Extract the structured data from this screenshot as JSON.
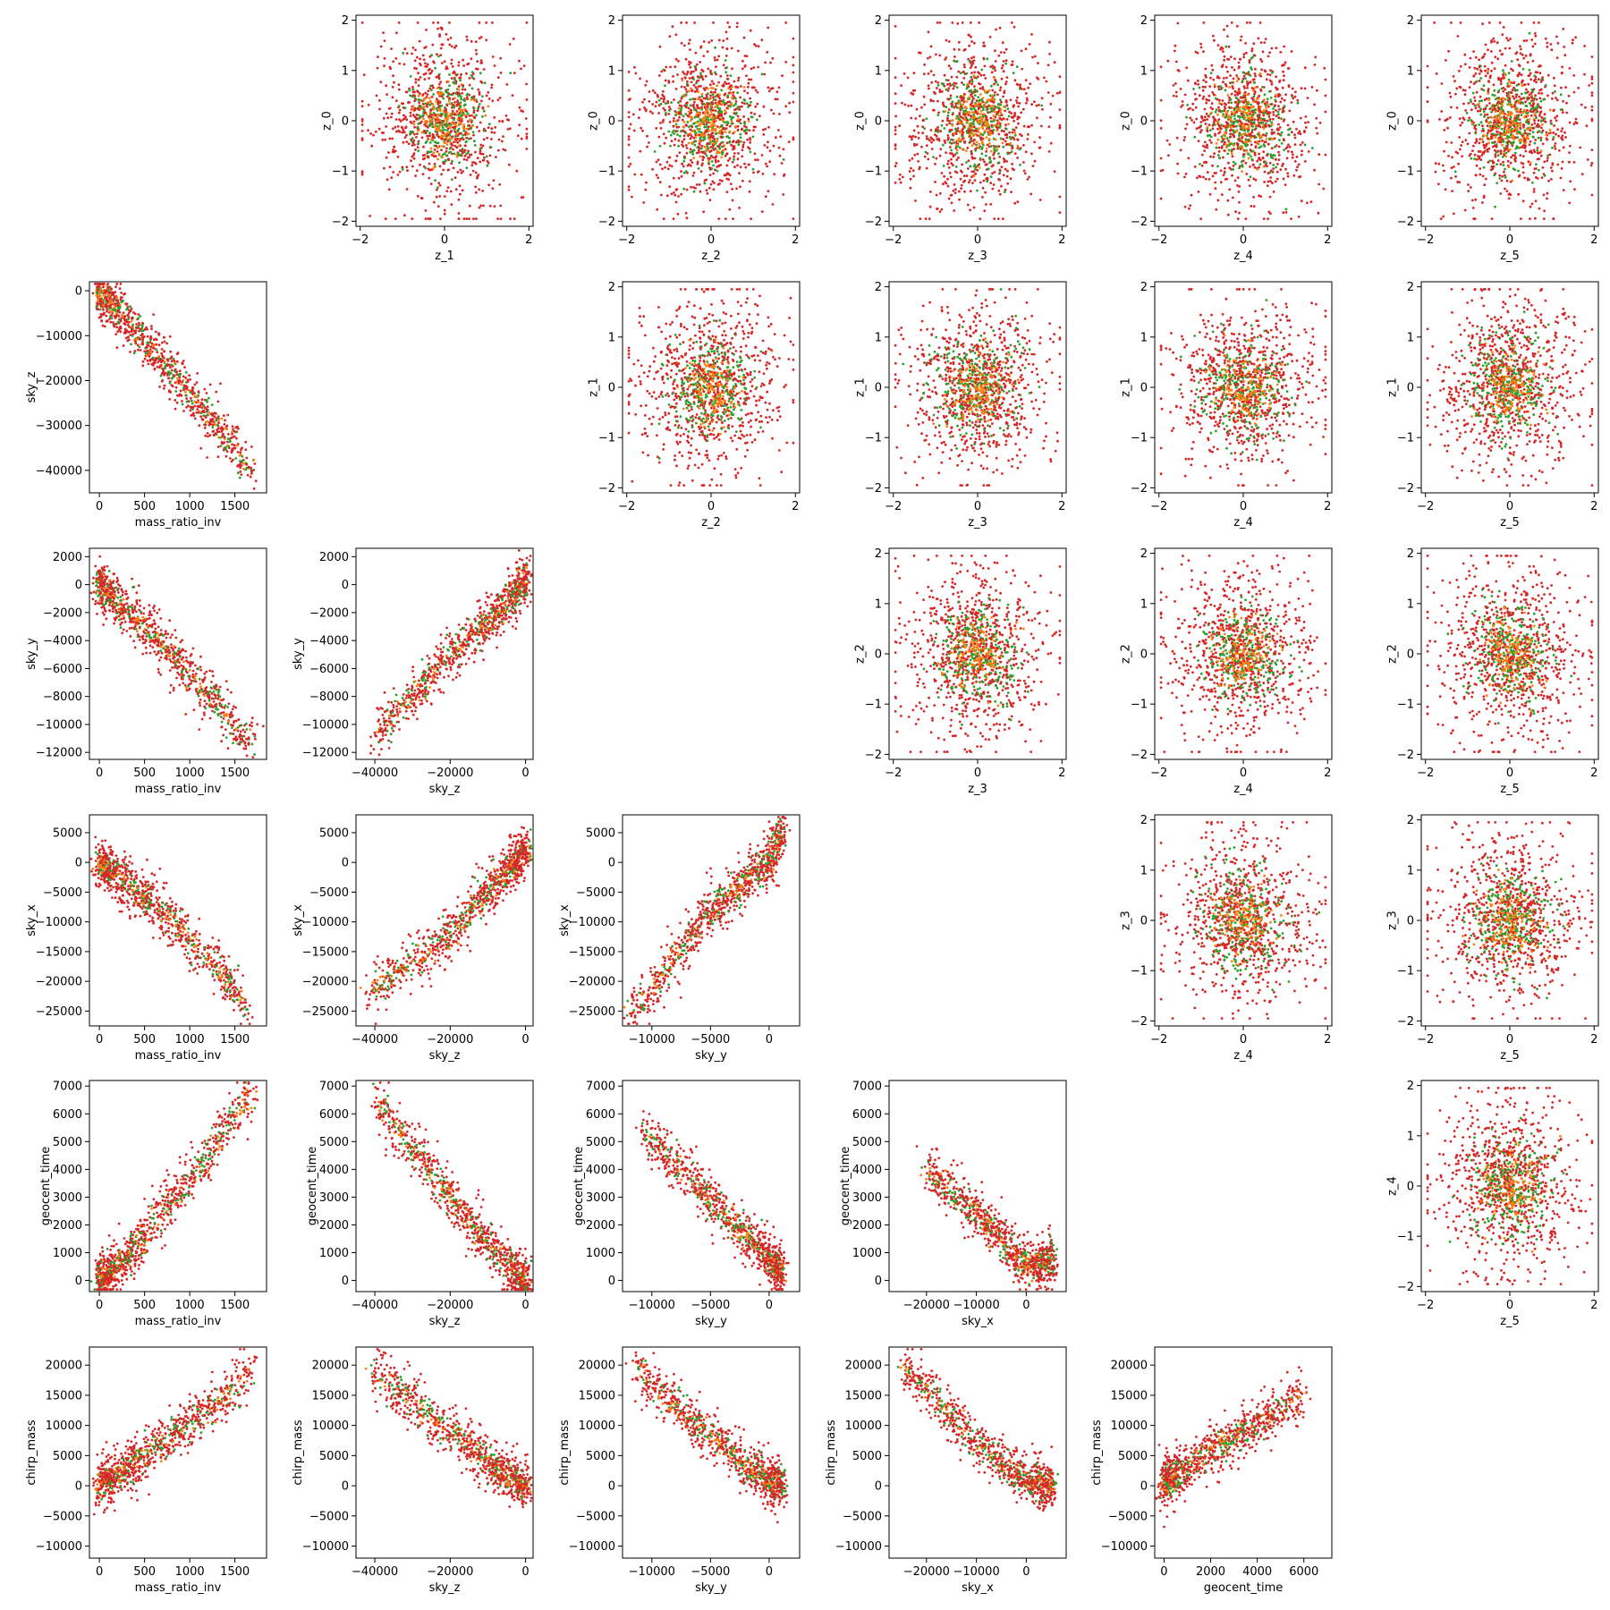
{
  "figure": {
    "style": {
      "colors": [
        "#2ca02c",
        "#d62728",
        "#ff7f0e"
      ]
    },
    "variables": {
      "z_0": {
        "label": "z_0",
        "range": [
          -2.1,
          2.1
        ],
        "ticks": [
          -2,
          -1,
          0,
          1,
          2
        ],
        "tick_labels": [
          "−2",
          "−1",
          "0",
          "1",
          "2"
        ]
      },
      "z_1": {
        "label": "z_1",
        "range": [
          -2.1,
          2.1
        ],
        "ticks": [
          -2,
          -1,
          0,
          1,
          2
        ],
        "tick_labels": [
          "−2",
          "−1",
          "0",
          "1",
          "2"
        ],
        "xticks": [
          -2,
          0,
          2
        ],
        "xtick_labels": [
          "−2",
          "0",
          "2"
        ]
      },
      "z_2": {
        "label": "z_2",
        "range": [
          -2.1,
          2.1
        ],
        "ticks": [
          -2,
          -1,
          0,
          1,
          2
        ],
        "tick_labels": [
          "−2",
          "−1",
          "0",
          "1",
          "2"
        ],
        "xticks": [
          -2,
          0,
          2
        ],
        "xtick_labels": [
          "−2",
          "0",
          "2"
        ]
      },
      "z_3": {
        "label": "z_3",
        "range": [
          -2.1,
          2.1
        ],
        "ticks": [
          -2,
          -1,
          0,
          1,
          2
        ],
        "tick_labels": [
          "−2",
          "−1",
          "0",
          "1",
          "2"
        ],
        "xticks": [
          -2,
          0,
          2
        ],
        "xtick_labels": [
          "−2",
          "0",
          "2"
        ]
      },
      "z_4": {
        "label": "z_4",
        "range": [
          -2.1,
          2.1
        ],
        "ticks": [
          -2,
          -1,
          0,
          1,
          2
        ],
        "tick_labels": [
          "−2",
          "−1",
          "0",
          "1",
          "2"
        ],
        "xticks": [
          -2,
          0,
          2
        ],
        "xtick_labels": [
          "−2",
          "0",
          "2"
        ]
      },
      "z_5": {
        "label": "z_5",
        "range": [
          -2.1,
          2.1
        ],
        "xticks": [
          -2,
          0,
          2
        ],
        "xtick_labels": [
          "−2",
          "0",
          "2"
        ]
      },
      "mass_ratio_inv": {
        "label": "mass_ratio_inv",
        "range": [
          -110,
          1850
        ],
        "xticks": [
          0,
          500,
          1000,
          1500
        ],
        "xtick_labels": [
          "0",
          "500",
          "1000",
          "1500"
        ]
      },
      "sky_z": {
        "label": "sky_z",
        "range": [
          -45000,
          2000
        ],
        "ticks": [
          -40000,
          -30000,
          -20000,
          -10000,
          0
        ],
        "tick_labels": [
          "−40000",
          "−30000",
          "−20000",
          "−10000",
          "0"
        ],
        "xticks": [
          -40000,
          -20000,
          0
        ],
        "xtick_labels": [
          "−40000",
          "−20000",
          "0"
        ]
      },
      "sky_y": {
        "label": "sky_y",
        "range": [
          -12500,
          2600
        ],
        "ticks": [
          -12000,
          -10000,
          -8000,
          -6000,
          -4000,
          -2000,
          0,
          2000
        ],
        "tick_labels": [
          "−12000",
          "−10000",
          "−8000",
          "−6000",
          "−4000",
          "−2000",
          "0",
          "2000"
        ],
        "xticks": [
          -10000,
          -5000,
          0
        ],
        "xtick_labels": [
          "−10000",
          "−5000",
          "0"
        ]
      },
      "sky_x": {
        "label": "sky_x",
        "range": [
          -27500,
          8000
        ],
        "ticks": [
          -25000,
          -20000,
          -15000,
          -10000,
          -5000,
          0,
          5000
        ],
        "tick_labels": [
          "−25000",
          "−20000",
          "−15000",
          "−10000",
          "−5000",
          "0",
          "5000"
        ],
        "xticks": [
          -20000,
          -10000,
          0
        ],
        "xtick_labels": [
          "−20000",
          "−10000",
          "0"
        ]
      },
      "geocent_time": {
        "label": "geocent_time",
        "range": [
          -400,
          7200
        ],
        "ticks": [
          0,
          1000,
          2000,
          3000,
          4000,
          5000,
          6000,
          7000
        ],
        "tick_labels": [
          "0",
          "1000",
          "2000",
          "3000",
          "4000",
          "5000",
          "6000",
          "7000"
        ],
        "xticks": [
          0,
          2000,
          4000,
          6000
        ],
        "xtick_labels": [
          "0",
          "2000",
          "4000",
          "6000"
        ]
      },
      "chirp_mass": {
        "label": "chirp_mass",
        "range": [
          -12000,
          23000
        ],
        "ticks": [
          -10000,
          -5000,
          0,
          5000,
          10000,
          15000,
          20000
        ],
        "tick_labels": [
          "−10000",
          "−5000",
          "0",
          "5000",
          "10000",
          "15000",
          "20000"
        ]
      }
    },
    "data_panels": [
      {
        "row": 1,
        "col": 0,
        "x": "mass_ratio_inv",
        "y": "sky_z"
      },
      {
        "row": 2,
        "col": 0,
        "x": "mass_ratio_inv",
        "y": "sky_y"
      },
      {
        "row": 2,
        "col": 1,
        "x": "sky_z",
        "y": "sky_y"
      },
      {
        "row": 3,
        "col": 0,
        "x": "mass_ratio_inv",
        "y": "sky_x"
      },
      {
        "row": 3,
        "col": 1,
        "x": "sky_z",
        "y": "sky_x"
      },
      {
        "row": 3,
        "col": 2,
        "x": "sky_y",
        "y": "sky_x"
      },
      {
        "row": 4,
        "col": 0,
        "x": "mass_ratio_inv",
        "y": "geocent_time"
      },
      {
        "row": 4,
        "col": 1,
        "x": "sky_z",
        "y": "geocent_time"
      },
      {
        "row": 4,
        "col": 2,
        "x": "sky_y",
        "y": "geocent_time"
      },
      {
        "row": 4,
        "col": 3,
        "x": "sky_x",
        "y": "geocent_time"
      },
      {
        "row": 5,
        "col": 0,
        "x": "mass_ratio_inv",
        "y": "chirp_mass"
      },
      {
        "row": 5,
        "col": 1,
        "x": "sky_z",
        "y": "chirp_mass"
      },
      {
        "row": 5,
        "col": 2,
        "x": "sky_y",
        "y": "chirp_mass"
      },
      {
        "row": 5,
        "col": 3,
        "x": "sky_x",
        "y": "chirp_mass"
      },
      {
        "row": 5,
        "col": 4,
        "x": "geocent_time",
        "y": "chirp_mass"
      }
    ],
    "latent_panels": [
      {
        "row": 0,
        "col": 1,
        "x": "z_1",
        "y": "z_0"
      },
      {
        "row": 0,
        "col": 2,
        "x": "z_2",
        "y": "z_0"
      },
      {
        "row": 0,
        "col": 3,
        "x": "z_3",
        "y": "z_0"
      },
      {
        "row": 0,
        "col": 4,
        "x": "z_4",
        "y": "z_0"
      },
      {
        "row": 0,
        "col": 5,
        "x": "z_5",
        "y": "z_0"
      },
      {
        "row": 1,
        "col": 2,
        "x": "z_2",
        "y": "z_1"
      },
      {
        "row": 1,
        "col": 3,
        "x": "z_3",
        "y": "z_1"
      },
      {
        "row": 1,
        "col": 4,
        "x": "z_4",
        "y": "z_1"
      },
      {
        "row": 1,
        "col": 5,
        "x": "z_5",
        "y": "z_1"
      },
      {
        "row": 2,
        "col": 3,
        "x": "z_3",
        "y": "z_2"
      },
      {
        "row": 2,
        "col": 4,
        "x": "z_4",
        "y": "z_2"
      },
      {
        "row": 2,
        "col": 5,
        "x": "z_5",
        "y": "z_2"
      },
      {
        "row": 3,
        "col": 4,
        "x": "z_4",
        "y": "z_3"
      },
      {
        "row": 3,
        "col": 5,
        "x": "z_5",
        "y": "z_3"
      },
      {
        "row": 4,
        "col": 5,
        "x": "z_5",
        "y": "z_4"
      }
    ]
  },
  "chart_data": {
    "type": "scatter",
    "series": [
      {
        "color": "#2ca02c"
      },
      {
        "color": "#d62728"
      },
      {
        "color": "#ff7f0e"
      }
    ],
    "bivariate_trends": [
      {
        "x": "mass_ratio_inv",
        "y": "sky_z",
        "points": [
          [
            0,
            0
          ],
          [
            500,
            -11000
          ],
          [
            1000,
            -23000
          ],
          [
            1500,
            -35000
          ],
          [
            1700,
            -40000
          ]
        ]
      },
      {
        "x": "mass_ratio_inv",
        "y": "sky_y",
        "points": [
          [
            0,
            0
          ],
          [
            500,
            -3000
          ],
          [
            1000,
            -6500
          ],
          [
            1500,
            -10000
          ],
          [
            1700,
            -11000
          ]
        ]
      },
      {
        "x": "sky_z",
        "y": "sky_y",
        "points": [
          [
            0,
            500
          ],
          [
            -5000,
            -1500
          ],
          [
            -20000,
            -5000
          ],
          [
            -30000,
            -8000
          ],
          [
            -40000,
            -11000
          ]
        ]
      },
      {
        "x": "mass_ratio_inv",
        "y": "sky_x",
        "points": [
          [
            0,
            0
          ],
          [
            500,
            -6000
          ],
          [
            1000,
            -13000
          ],
          [
            1500,
            -21000
          ],
          [
            1650,
            -25000
          ]
        ]
      },
      {
        "x": "sky_z",
        "y": "sky_x",
        "points": [
          [
            0,
            2000
          ],
          [
            -10000,
            -5000
          ],
          [
            -20000,
            -12000
          ],
          [
            -30000,
            -17000
          ],
          [
            -42000,
            -22000
          ]
        ]
      },
      {
        "x": "sky_y",
        "y": "sky_x",
        "points": [
          [
            1000,
            5000
          ],
          [
            0,
            0
          ],
          [
            -5000,
            -8000
          ],
          [
            -10000,
            -21000
          ],
          [
            -12000,
            -25000
          ]
        ]
      },
      {
        "x": "mass_ratio_inv",
        "y": "geocent_time",
        "points": [
          [
            0,
            0
          ],
          [
            300,
            800
          ],
          [
            700,
            2500
          ],
          [
            1200,
            4500
          ],
          [
            1700,
            6800
          ]
        ]
      },
      {
        "x": "sky_z",
        "y": "geocent_time",
        "points": [
          [
            0,
            0
          ],
          [
            -10000,
            1300
          ],
          [
            -20000,
            3000
          ],
          [
            -30000,
            4800
          ],
          [
            -40000,
            6500
          ]
        ]
      },
      {
        "x": "sky_y",
        "y": "geocent_time",
        "points": [
          [
            1000,
            300
          ],
          [
            0,
            800
          ],
          [
            -3000,
            2000
          ],
          [
            -7000,
            3800
          ],
          [
            -11000,
            5500
          ]
        ]
      },
      {
        "x": "sky_x",
        "y": "geocent_time",
        "points": [
          [
            5000,
            700
          ],
          [
            0,
            500
          ],
          [
            -5000,
            1500
          ],
          [
            -10000,
            2500
          ],
          [
            -20000,
            4000
          ]
        ]
      },
      {
        "x": "mass_ratio_inv",
        "y": "chirp_mass",
        "points": [
          [
            0,
            0
          ],
          [
            500,
            5000
          ],
          [
            1000,
            10500
          ],
          [
            1500,
            16000
          ],
          [
            1700,
            19500
          ]
        ]
      },
      {
        "x": "sky_z",
        "y": "chirp_mass",
        "points": [
          [
            0,
            0
          ],
          [
            -10000,
            4000
          ],
          [
            -20000,
            9000
          ],
          [
            -30000,
            14000
          ],
          [
            -40000,
            19000
          ]
        ]
      },
      {
        "x": "sky_y",
        "y": "chirp_mass",
        "points": [
          [
            1000,
            0
          ],
          [
            0,
            500
          ],
          [
            -5000,
            8000
          ],
          [
            -10000,
            17000
          ],
          [
            -11500,
            20000
          ]
        ]
      },
      {
        "x": "sky_x",
        "y": "chirp_mass",
        "points": [
          [
            5000,
            200
          ],
          [
            0,
            800
          ],
          [
            -10000,
            7000
          ],
          [
            -20000,
            16000
          ],
          [
            -25000,
            20000
          ]
        ]
      },
      {
        "x": "geocent_time",
        "y": "chirp_mass",
        "points": [
          [
            0,
            0
          ],
          [
            1000,
            3000
          ],
          [
            2000,
            6000
          ],
          [
            4000,
            10000
          ],
          [
            6000,
            15000
          ]
        ]
      }
    ],
    "latent_distribution": "standard normal, centered at 0, spread about ±2",
    "grid": false,
    "legend": "none"
  }
}
